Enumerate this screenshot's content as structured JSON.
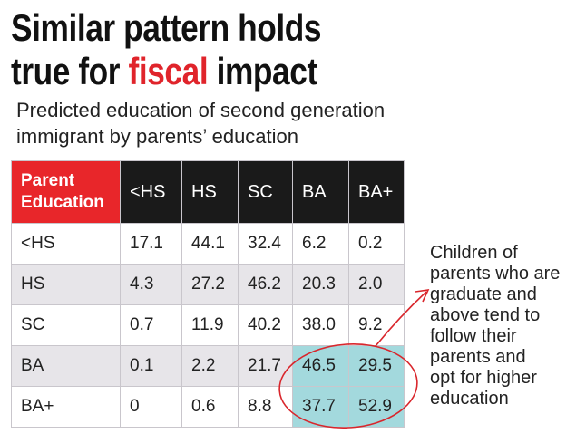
{
  "header": {
    "title_line1": "Similar pattern holds",
    "title_line2": [
      "true for",
      "fiscal",
      "impact"
    ],
    "subtitle": [
      "Predicted education of second generation",
      "immigrant by parents’ education"
    ]
  },
  "table": {
    "columns": [
      "Parent Education",
      "<HS",
      "HS",
      "SC",
      "BA",
      "BA+"
    ],
    "rows": [
      [
        "<HS",
        "17.1",
        "44.1",
        "32.4",
        "6.2",
        "0.2"
      ],
      [
        "HS",
        "4.3",
        "27.2",
        "46.2",
        "20.3",
        "2.0"
      ],
      [
        "SC",
        "0.7",
        "11.9",
        "40.2",
        "38.0",
        "9.2"
      ],
      [
        "BA",
        "0.1",
        "2.2",
        "21.7",
        "46.5",
        "29.5"
      ],
      [
        "BA+",
        "0",
        "0.6",
        "8.8",
        "37.7",
        "52.9"
      ]
    ]
  },
  "annotation": [
    "Children of",
    "parents who are",
    "graduate and",
    "above tend to",
    "follow their",
    "parents and",
    "opt for higher",
    "education"
  ]
}
